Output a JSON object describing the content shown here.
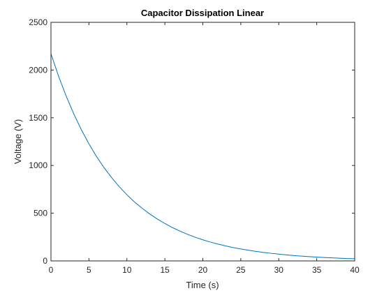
{
  "chart_data": {
    "type": "line",
    "title": "Capacitor Dissipation Linear",
    "xlabel": "Time (s)",
    "ylabel": "Voltage (V)",
    "xlim": [
      0,
      40
    ],
    "ylim": [
      0,
      2500
    ],
    "xticks": [
      0,
      5,
      10,
      15,
      20,
      25,
      30,
      35,
      40
    ],
    "yticks": [
      0,
      500,
      1000,
      1500,
      2000,
      2500
    ],
    "grid": false,
    "box": true,
    "colors": {
      "line": "#0072BD",
      "axes": "#262626"
    },
    "series": [
      {
        "x": [
          0,
          1,
          2,
          3,
          4,
          5,
          6,
          7,
          8,
          9,
          10,
          11,
          12,
          13,
          14,
          15,
          16,
          17,
          18,
          19,
          20,
          21,
          22,
          23,
          24,
          25,
          26,
          27,
          28,
          29,
          30,
          31,
          32,
          33,
          34,
          35,
          36,
          37,
          38,
          39,
          40
        ],
        "values": [
          2170,
          1936,
          1727,
          1541,
          1375,
          1226,
          1094,
          976,
          871,
          777,
          693,
          618,
          552,
          492,
          439,
          392,
          349,
          312,
          278,
          248,
          221,
          197,
          176,
          157,
          140,
          125,
          112,
          100,
          89,
          79,
          71,
          63,
          56,
          50,
          45,
          40,
          36,
          32,
          28,
          25,
          23
        ]
      }
    ]
  }
}
